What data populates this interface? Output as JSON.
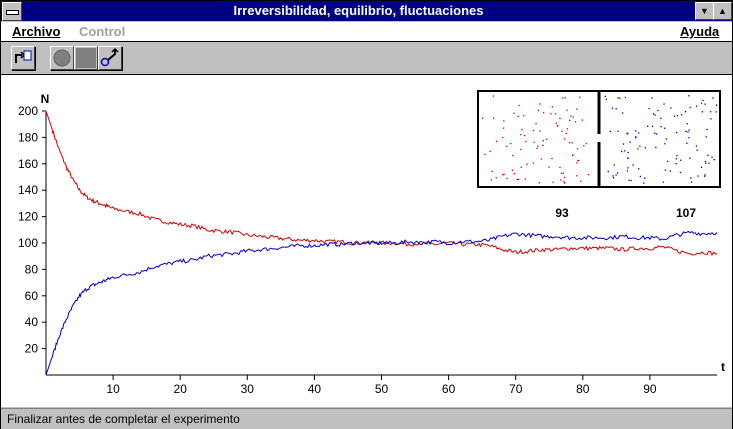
{
  "window": {
    "title": "Irreversibilidad, equilibrio, fluctuaciones"
  },
  "menu": {
    "archivo": "Archivo",
    "control": "Control",
    "ayuda": "Ayuda"
  },
  "status": {
    "text": "Finalizar antes de completar el experimento"
  },
  "icons": {
    "system": "system-menu-icon",
    "minimize": "minimize-icon",
    "maximize": "maximize-icon",
    "new": "new-run-icon",
    "record": "record-icon",
    "stop": "stop-icon",
    "step": "step-icon"
  },
  "colors": {
    "title_bar": "#000080",
    "series_left": "#d00000",
    "series_right": "#0000c0"
  },
  "chart_data": {
    "type": "line",
    "ylabel": "N",
    "xlabel": "t",
    "xlim": [
      0,
      100
    ],
    "ylim": [
      0,
      200
    ],
    "xticks": [
      10,
      20,
      30,
      40,
      50,
      60,
      70,
      80,
      90
    ],
    "yticks": [
      20,
      40,
      60,
      80,
      100,
      120,
      140,
      160,
      180,
      200
    ],
    "series": [
      {
        "color": "#d00000",
        "x": [
          0,
          1,
          2,
          3,
          4,
          5,
          6,
          7,
          8,
          9,
          10,
          12,
          14,
          16,
          18,
          20,
          22,
          24,
          26,
          28,
          30,
          32,
          34,
          36,
          38,
          40,
          42,
          44,
          46,
          48,
          50,
          52,
          54,
          56,
          58,
          60,
          62,
          64,
          66,
          68,
          70,
          72,
          74,
          76,
          78,
          80,
          82,
          84,
          86,
          88,
          90,
          92,
          94,
          96,
          98,
          100
        ],
        "y": [
          200,
          185,
          170,
          158,
          148,
          140,
          135,
          132,
          130,
          128,
          126,
          124,
          122,
          118,
          116,
          114,
          113,
          110,
          109,
          108,
          106,
          105,
          104,
          103,
          102,
          102,
          101,
          101,
          100,
          100,
          100,
          100,
          99,
          100,
          99,
          100,
          99,
          99,
          98,
          95,
          93,
          94,
          95,
          95,
          96,
          96,
          96,
          96,
          95,
          96,
          96,
          97,
          94,
          92,
          93,
          92
        ]
      },
      {
        "color": "#0000c0",
        "x": [
          0,
          1,
          2,
          3,
          4,
          5,
          6,
          7,
          8,
          9,
          10,
          12,
          14,
          16,
          18,
          20,
          22,
          24,
          26,
          28,
          30,
          32,
          34,
          36,
          38,
          40,
          42,
          44,
          46,
          48,
          50,
          52,
          54,
          56,
          58,
          60,
          62,
          64,
          66,
          68,
          70,
          72,
          74,
          76,
          78,
          80,
          82,
          84,
          86,
          88,
          90,
          92,
          94,
          96,
          98,
          100
        ],
        "y": [
          0,
          15,
          30,
          42,
          52,
          60,
          65,
          68,
          70,
          72,
          74,
          76,
          78,
          82,
          84,
          86,
          87,
          90,
          91,
          92,
          94,
          95,
          96,
          97,
          98,
          98,
          99,
          99,
          100,
          100,
          100,
          100,
          101,
          100,
          101,
          100,
          101,
          101,
          102,
          105,
          107,
          106,
          105,
          105,
          104,
          104,
          104,
          104,
          105,
          104,
          104,
          103,
          106,
          108,
          107,
          108
        ]
      }
    ],
    "box": {
      "left_count": "93",
      "right_count": "107"
    }
  }
}
